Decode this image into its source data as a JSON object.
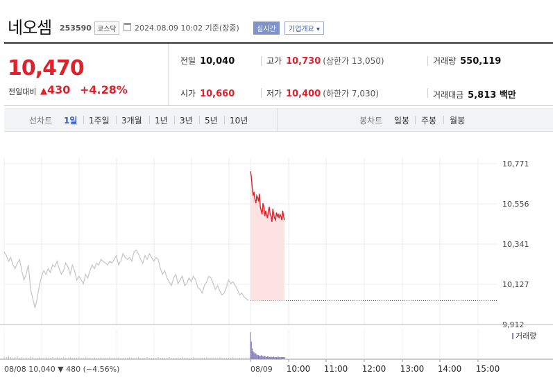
{
  "header": {
    "stock_name": "네오셈",
    "stock_code": "253590",
    "market": "코스닥",
    "timestamp": "2024.08.09 10:02 기준(장중)",
    "realtime_label": "실시간",
    "overview_label": "기업개요 ▾"
  },
  "quote": {
    "price": "10,470",
    "change_label": "전일대비",
    "change_value": "430",
    "change_pct": "+4.28%",
    "prev_close_label": "전일",
    "prev_close": "10,040",
    "open_label": "시가",
    "open": "10,660",
    "high_label": "고가",
    "high": "10,730",
    "upper_limit": "(상한가 13,050)",
    "low_label": "저가",
    "low": "10,400",
    "lower_limit": "(하한가 7,030)",
    "volume_label": "거래량",
    "volume": "550,119",
    "amount_label": "거래대금",
    "amount": "5,813 백만"
  },
  "tabs": {
    "line_label": "선차트",
    "line_periods": [
      "1일",
      "1주일",
      "3개월",
      "1년",
      "3년",
      "5년",
      "10년"
    ],
    "active": "1일",
    "candle_label": "봉차트",
    "candle_periods": [
      "일봉",
      "주봉",
      "월봉"
    ]
  },
  "colors": {
    "up": "#e0202a",
    "down": "#2f55b8",
    "prev_day_line": "#c8c8c8",
    "fill_up": "#fde2e2"
  },
  "chart_data": {
    "type": "line",
    "y_ticks": [
      "10,771",
      "10,556",
      "10,341",
      "10,127",
      "9,912"
    ],
    "ylim": [
      9912,
      10771
    ],
    "x_ticks": [
      "08/09",
      "10:00",
      "11:00",
      "12:00",
      "13:00",
      "14:00",
      "15:00"
    ],
    "prev_day_note": "08/08 10,040 ▼ 480 (−4.56%)",
    "volume_legend": "거래량",
    "baseline": 10040,
    "series": [
      {
        "values": [
          10300,
          10280,
          10250,
          10270,
          10230,
          10210,
          10240,
          10260,
          10200,
          10150,
          10180,
          10230,
          10100,
          10050,
          10000,
          10050,
          10120,
          10170,
          10200,
          10180,
          10210,
          10190,
          10230,
          10220,
          10250,
          10210,
          10180,
          10200,
          10240,
          10220,
          10180,
          10230,
          10200,
          10150,
          10170,
          10150,
          10130,
          10180,
          10160,
          10200,
          10230,
          10210,
          10240,
          10230,
          10260,
          10250,
          10240,
          10230,
          10250,
          10240,
          10260,
          10280,
          10230,
          10250,
          10290,
          10270,
          10260,
          10270,
          10250,
          10300,
          10310,
          10290,
          10260,
          10240,
          10280,
          10260,
          10290,
          10270,
          10250,
          10270,
          10260,
          10210,
          10180,
          10200,
          10160,
          10140,
          10120,
          10160,
          10180,
          10130,
          10150,
          10170,
          10120,
          10130,
          10160,
          10140,
          10170,
          10150,
          10110,
          10100,
          10080,
          10120,
          10140,
          10170,
          10160,
          10130,
          10100,
          10120,
          10090,
          10070,
          10080,
          10110,
          10150,
          10130,
          10140,
          10120,
          10100,
          10070,
          10080,
          10060,
          10050,
          10040
        ]
      },
      {
        "values": [
          10730,
          10700,
          10640,
          10600,
          10620,
          10580,
          10560,
          10600,
          10590,
          10570,
          10610,
          10540,
          10520,
          10500,
          10560,
          10540,
          10490,
          10520,
          10500,
          10480,
          10520,
          10540,
          10500,
          10490,
          10460,
          10530,
          10500,
          10480,
          10470,
          10510,
          10490,
          10500,
          10480,
          10500,
          10490,
          10470,
          10520,
          10490,
          10470
        ]
      }
    ],
    "volume": [
      4,
      3,
      5,
      3,
      2,
      3,
      4,
      2,
      3,
      2,
      3,
      2,
      4,
      3,
      2,
      2,
      3,
      2,
      2,
      3,
      2,
      2,
      3,
      2,
      3,
      2,
      2,
      3,
      2,
      2,
      3,
      2,
      2,
      2,
      3,
      2,
      2,
      3,
      2,
      2,
      2,
      3,
      2,
      2,
      3,
      2,
      2,
      2,
      3,
      2,
      2,
      2,
      3,
      2,
      2,
      2,
      2,
      3,
      2,
      2,
      2,
      3,
      2,
      2,
      2,
      3,
      2,
      2,
      2,
      2,
      3,
      2,
      2,
      2,
      2,
      3,
      2,
      2,
      2,
      2,
      2,
      3,
      2,
      2,
      2,
      2,
      3,
      2,
      2,
      2,
      2,
      2,
      3,
      2,
      2,
      2,
      2,
      2,
      3,
      2,
      2,
      2,
      2,
      2,
      3,
      2,
      2,
      2,
      2,
      2,
      3,
      2
    ],
    "volume_today": [
      40,
      26,
      16,
      12,
      10,
      8,
      9,
      7,
      6,
      6,
      5,
      5,
      6,
      5,
      4,
      4,
      5,
      4,
      3,
      4,
      4,
      3,
      3,
      4,
      3,
      3,
      4,
      3,
      3,
      3,
      3,
      4,
      3,
      3,
      3,
      3,
      3,
      3,
      3
    ]
  }
}
